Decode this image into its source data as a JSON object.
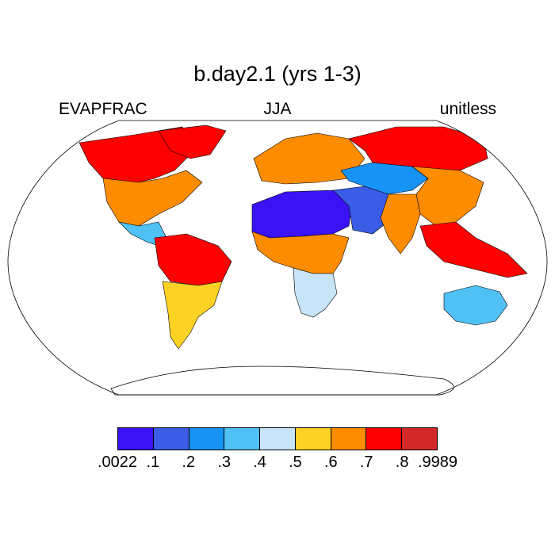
{
  "title": "b.day2.1 (yrs 1-3)",
  "left_label": "EVAPFRAC",
  "center_label": "JJA",
  "right_label": "unitless",
  "colorbar": {
    "colors": [
      "#3a12f5",
      "#3a5ce6",
      "#1793f5",
      "#4fc1f5",
      "#c8e4f8",
      "#fed224",
      "#fe8c00",
      "#fe0000",
      "#d42828"
    ],
    "labels": [
      ".0022",
      ".1",
      ".2",
      ".3",
      ".4",
      ".5",
      ".6",
      ".7",
      ".8",
      ".9989"
    ]
  },
  "regions": [
    {
      "name": "north-america-west",
      "value_class": 7
    },
    {
      "name": "north-america-east",
      "value_class": 6
    },
    {
      "name": "central-america",
      "value_class": 3
    },
    {
      "name": "south-america-north",
      "value_class": 7
    },
    {
      "name": "south-america-south",
      "value_class": 5
    },
    {
      "name": "north-africa-sahara",
      "value_class": 0
    },
    {
      "name": "arabia-middle-east",
      "value_class": 1
    },
    {
      "name": "sub-saharan-africa",
      "value_class": 6
    },
    {
      "name": "southern-africa",
      "value_class": 4
    },
    {
      "name": "europe",
      "value_class": 6
    },
    {
      "name": "siberia",
      "value_class": 7
    },
    {
      "name": "central-asia",
      "value_class": 2
    },
    {
      "name": "east-asia",
      "value_class": 6
    },
    {
      "name": "south-asia",
      "value_class": 6
    },
    {
      "name": "southeast-asia",
      "value_class": 7
    },
    {
      "name": "australia",
      "value_class": 3
    },
    {
      "name": "greenland-canada-north",
      "value_class": 7
    }
  ]
}
